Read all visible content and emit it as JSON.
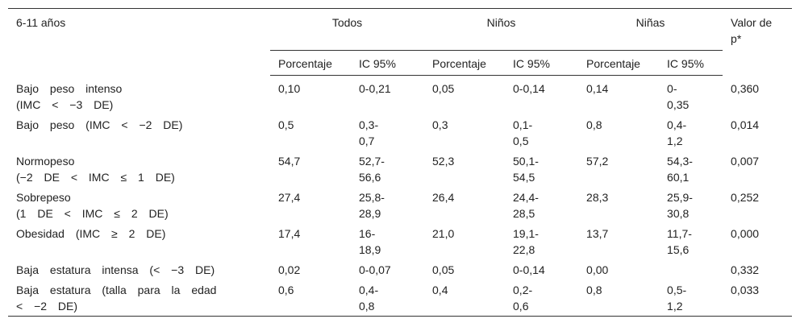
{
  "table": {
    "header": {
      "corner": "6-11 años",
      "groups": [
        "Todos",
        "Niños",
        "Niñas"
      ],
      "pvalue": "Valor de p*",
      "subheaders": [
        "Porcentaje",
        "IC 95%",
        "Porcentaje",
        "IC 95%",
        "Porcentaje",
        "IC 95%"
      ]
    },
    "rows": [
      {
        "label": [
          "Bajo peso intenso",
          "(IMC < −3 DE)"
        ],
        "cells": [
          [
            "0,10"
          ],
          [
            "0-0,21"
          ],
          [
            "0,05"
          ],
          [
            "0-0,14"
          ],
          [
            "0,14"
          ],
          [
            "0-",
            "0,35"
          ],
          [
            "0,360"
          ]
        ]
      },
      {
        "label": [
          "Bajo peso (IMC < −2 DE)"
        ],
        "cells": [
          [
            "0,5"
          ],
          [
            "0,3-",
            "0,7"
          ],
          [
            "0,3"
          ],
          [
            "0,1-",
            "0,5"
          ],
          [
            "0,8"
          ],
          [
            "0,4-",
            "1,2"
          ],
          [
            "0,014"
          ]
        ]
      },
      {
        "label": [
          "Normopeso",
          "(−2 DE < IMC ≤ 1 DE)"
        ],
        "cells": [
          [
            "54,7"
          ],
          [
            "52,7-",
            "56,6"
          ],
          [
            "52,3"
          ],
          [
            "50,1-",
            "54,5"
          ],
          [
            "57,2"
          ],
          [
            "54,3-",
            "60,1"
          ],
          [
            "0,007"
          ]
        ]
      },
      {
        "label": [
          "Sobrepeso",
          "(1 DE < IMC ≤ 2 DE)"
        ],
        "cells": [
          [
            "27,4"
          ],
          [
            "25,8-",
            "28,9"
          ],
          [
            "26,4"
          ],
          [
            "24,4-",
            "28,5"
          ],
          [
            "28,3"
          ],
          [
            "25,9-",
            "30,8"
          ],
          [
            "0,252"
          ]
        ]
      },
      {
        "label": [
          "Obesidad (IMC ≥ 2 DE)"
        ],
        "cells": [
          [
            "17,4"
          ],
          [
            "16-",
            "18,9"
          ],
          [
            "21,0"
          ],
          [
            "19,1-",
            "22,8"
          ],
          [
            "13,7"
          ],
          [
            "11,7-",
            "15,6"
          ],
          [
            "0,000"
          ]
        ]
      },
      {
        "label": [
          "Baja estatura intensa (< −3 DE)"
        ],
        "cells": [
          [
            "0,02"
          ],
          [
            "0-0,07"
          ],
          [
            "0,05"
          ],
          [
            "0-0,14"
          ],
          [
            "0,00"
          ],
          null,
          [
            "0,332"
          ]
        ]
      },
      {
        "label": [
          "Baja estatura (talla para la edad",
          "< −2 DE)"
        ],
        "cells": [
          [
            "0,6"
          ],
          [
            "0,4-",
            "0,8"
          ],
          [
            "0,4"
          ],
          [
            "0,2-",
            "0,6"
          ],
          [
            "0,8"
          ],
          [
            "0,5-",
            "1,2"
          ],
          [
            "0,033"
          ]
        ]
      }
    ]
  }
}
